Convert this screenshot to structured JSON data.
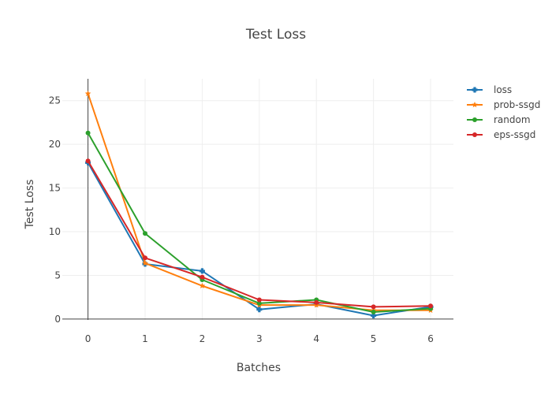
{
  "chart_data": {
    "type": "line",
    "title": "Test Loss",
    "xlabel": "Batches",
    "ylabel": "Test Loss",
    "x": [
      0,
      1,
      2,
      3,
      4,
      5,
      6
    ],
    "xlim": [
      -0.45,
      6.4
    ],
    "ylim": [
      -0.1,
      27.5
    ],
    "xticks": [
      0,
      1,
      2,
      3,
      4,
      5,
      6
    ],
    "yticks": [
      0,
      5,
      10,
      15,
      20,
      25
    ],
    "grid": true,
    "legend": "top-right",
    "series": [
      {
        "name": "loss",
        "color": "#1f77b4",
        "marker": "cross",
        "values": [
          17.9,
          6.3,
          5.5,
          1.1,
          1.7,
          0.4,
          1.4
        ]
      },
      {
        "name": "prob-ssgd",
        "color": "#ff7f0e",
        "marker": "star",
        "values": [
          25.8,
          6.4,
          3.8,
          1.6,
          1.6,
          1.0,
          1.0
        ]
      },
      {
        "name": "random",
        "color": "#2ca02c",
        "marker": "circle",
        "values": [
          21.3,
          9.8,
          4.5,
          1.8,
          2.2,
          0.8,
          1.2
        ]
      },
      {
        "name": "eps-ssgd",
        "color": "#d62728",
        "marker": "circle",
        "values": [
          18.1,
          7.0,
          4.8,
          2.2,
          1.9,
          1.4,
          1.5
        ]
      }
    ]
  }
}
